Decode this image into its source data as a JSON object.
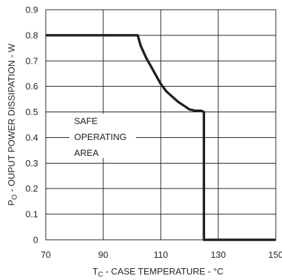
{
  "chart_data": {
    "type": "line",
    "title": "",
    "xlabel": {
      "prefix": "T",
      "sub": "C",
      "text": " - CASE TEMPERATURE - °C"
    },
    "ylabel": {
      "prefix": "P",
      "sub": "O",
      "text": " - OUPUT POWER DISSIPATION - W"
    },
    "xlim": [
      70,
      150
    ],
    "ylim": [
      0,
      0.9
    ],
    "x_ticks": [
      70,
      90,
      110,
      130,
      150
    ],
    "x_tick_labels": [
      "70",
      "90",
      "110",
      "130",
      "150"
    ],
    "y_ticks": [
      0,
      0.1,
      0.2,
      0.3,
      0.4,
      0.5,
      0.6,
      0.7,
      0.8,
      0.9
    ],
    "y_tick_labels": [
      "0",
      "0.1",
      "0.2",
      "0.3",
      "0.4",
      "0.5",
      "0.6",
      "0.7",
      "0.8",
      "0.9"
    ],
    "grid": true,
    "annotation": [
      "SAFE",
      "OPERATING",
      "AREA"
    ],
    "series": [
      {
        "x": [
          70,
          102,
          103,
          105,
          107,
          109,
          110,
          112,
          114,
          116,
          118,
          120,
          122,
          124,
          125,
          125,
          150
        ],
        "y": [
          0.8,
          0.8,
          0.76,
          0.71,
          0.67,
          0.63,
          0.61,
          0.58,
          0.56,
          0.54,
          0.525,
          0.51,
          0.505,
          0.505,
          0.5,
          0,
          0
        ]
      }
    ]
  }
}
